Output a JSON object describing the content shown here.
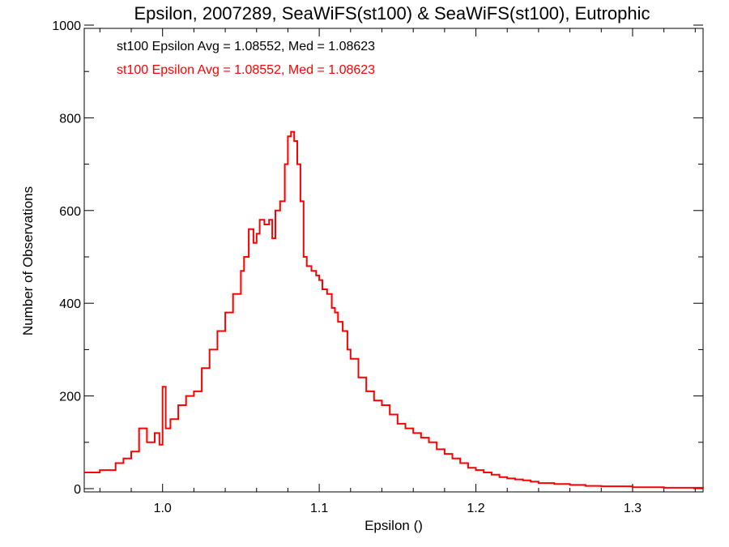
{
  "chart_data": {
    "type": "line",
    "title": "Epsilon, 2007289, SeaWiFS(st100) & SeaWiFS(st100), Eutrophic",
    "xlabel": "Epsilon ()",
    "ylabel": "Number of Observations",
    "xlim": [
      0.95,
      1.345
    ],
    "ylim": [
      0,
      1000
    ],
    "x_ticks": [
      1.0,
      1.1,
      1.2,
      1.3
    ],
    "x_tick_labels": [
      "1.0",
      "1.1",
      "1.2",
      "1.3"
    ],
    "y_ticks": [
      0,
      200,
      400,
      600,
      800,
      1000
    ],
    "y_tick_labels": [
      "0",
      "200",
      "400",
      "600",
      "800",
      "1000"
    ],
    "grid": false,
    "annotations": [
      {
        "text": "st100 Epsilon Avg = 1.08552, Med = 1.08623",
        "color": "#000000"
      },
      {
        "text": "st100 Epsilon Avg = 1.08552, Med = 1.08623",
        "color": "#ff0000"
      }
    ],
    "series": [
      {
        "color": "#ff0000",
        "style": "step",
        "x": [
          0.95,
          0.96,
          0.97,
          0.975,
          0.98,
          0.985,
          0.99,
          0.995,
          0.998,
          1.0,
          1.002,
          1.005,
          1.01,
          1.015,
          1.02,
          1.025,
          1.03,
          1.035,
          1.04,
          1.045,
          1.05,
          1.052,
          1.055,
          1.058,
          1.06,
          1.062,
          1.065,
          1.068,
          1.07,
          1.072,
          1.075,
          1.078,
          1.08,
          1.082,
          1.084,
          1.086,
          1.088,
          1.09,
          1.092,
          1.095,
          1.098,
          1.1,
          1.102,
          1.105,
          1.108,
          1.11,
          1.112,
          1.115,
          1.118,
          1.12,
          1.125,
          1.13,
          1.135,
          1.14,
          1.145,
          1.15,
          1.155,
          1.16,
          1.165,
          1.17,
          1.175,
          1.18,
          1.185,
          1.19,
          1.195,
          1.2,
          1.205,
          1.21,
          1.215,
          1.22,
          1.225,
          1.23,
          1.235,
          1.24,
          1.25,
          1.26,
          1.27,
          1.28,
          1.3,
          1.32,
          1.345
        ],
        "y": [
          35,
          40,
          55,
          65,
          80,
          130,
          100,
          120,
          95,
          220,
          130,
          150,
          180,
          200,
          210,
          260,
          300,
          340,
          380,
          420,
          470,
          500,
          560,
          530,
          550,
          580,
          570,
          580,
          540,
          600,
          620,
          700,
          760,
          770,
          750,
          700,
          620,
          500,
          480,
          470,
          460,
          450,
          430,
          420,
          390,
          380,
          360,
          340,
          300,
          280,
          240,
          210,
          190,
          180,
          160,
          140,
          130,
          120,
          110,
          100,
          85,
          75,
          65,
          55,
          45,
          40,
          35,
          30,
          25,
          22,
          20,
          18,
          15,
          12,
          10,
          8,
          6,
          5,
          3,
          2,
          1
        ]
      }
    ]
  }
}
